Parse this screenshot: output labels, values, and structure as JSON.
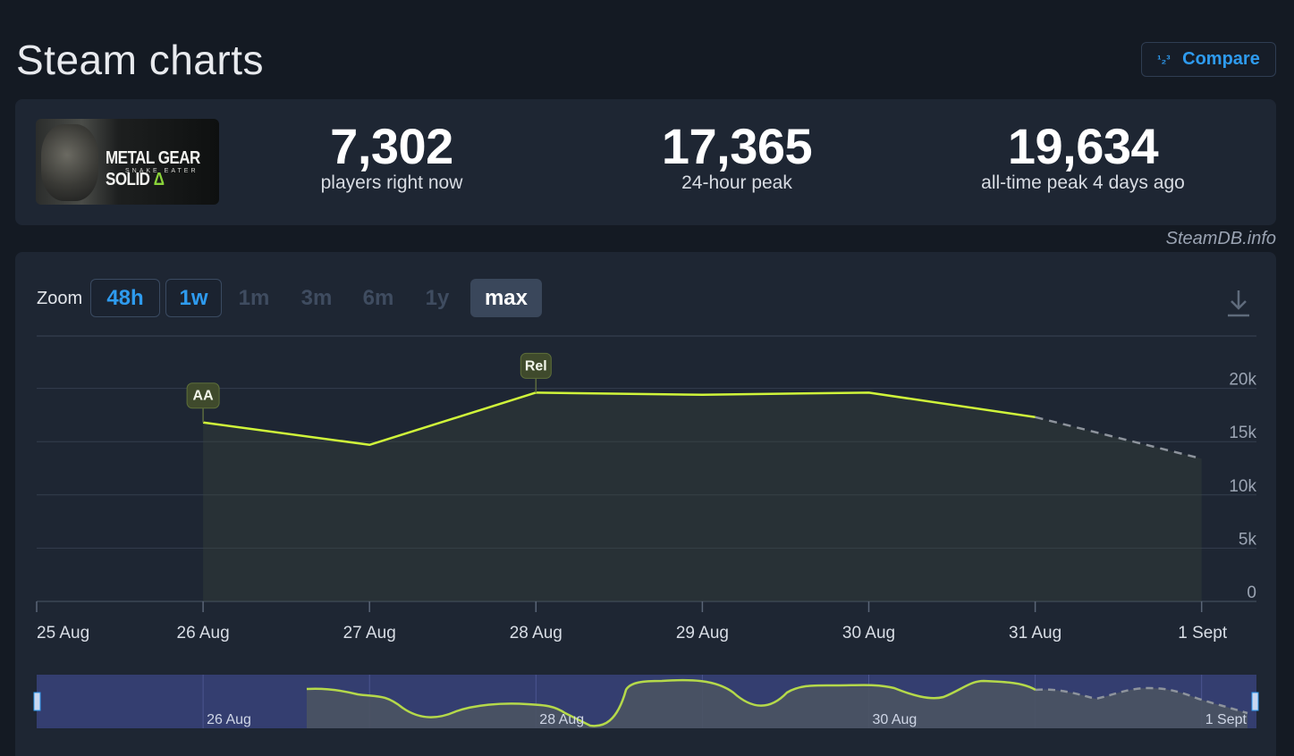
{
  "header": {
    "title": "Steam charts",
    "compare_icon": "¹₂³",
    "compare_label": "Compare"
  },
  "game": {
    "image_label": "game-cover",
    "logo_text": "METAL GEAR SOLID",
    "logo_delta": "Δ",
    "logo_sub": "SNAKE EATER"
  },
  "stats": [
    {
      "value": "7,302",
      "label": "players right now"
    },
    {
      "value": "17,365",
      "label": "24-hour peak"
    },
    {
      "value": "19,634",
      "label": "all-time peak 4 days ago"
    }
  ],
  "watermark": "SteamDB.info",
  "zoom": {
    "label": "Zoom",
    "options": [
      "48h",
      "1w",
      "1m",
      "3m",
      "6m",
      "1y",
      "max"
    ],
    "selected": "max"
  },
  "colors": {
    "line": "#d0f53a",
    "projection": "#8d939c",
    "navigator_band": "#353f73",
    "accent_blue": "#2e9bef"
  },
  "chart_data": {
    "type": "line",
    "x": [
      "25 Aug",
      "26 Aug",
      "27 Aug",
      "28 Aug",
      "29 Aug",
      "30 Aug",
      "31 Aug",
      "1 Sept"
    ],
    "series": [
      {
        "values": [
          null,
          16800,
          14700,
          19600,
          19400,
          19600,
          17300,
          null
        ]
      }
    ],
    "projection": {
      "x": [
        "31 Aug",
        "1 Sept"
      ],
      "values": [
        17300,
        13400
      ]
    },
    "yticks": [
      "0",
      "5k",
      "10k",
      "15k",
      "20k"
    ],
    "ylim": [
      0,
      25000
    ],
    "grid": true,
    "annotations": [
      {
        "x": "26 Aug",
        "label": "AA"
      },
      {
        "x": "28 Aug",
        "label": "Rel"
      }
    ],
    "navigator": {
      "labels": [
        "26 Aug",
        "28 Aug",
        "30 Aug",
        "1 Sept"
      ]
    }
  }
}
